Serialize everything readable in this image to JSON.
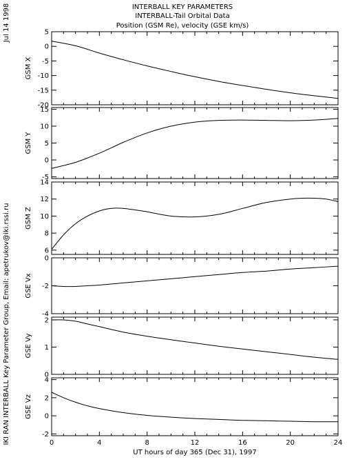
{
  "header": {
    "line1": "INTERBALL KEY PARAMETERS",
    "line2": "INTERBALL-Tail Orbital Data",
    "line3": "Position (GSM Re), velocity (GSE km/s)"
  },
  "side_date": "Jul 14 1998",
  "side_credit": "IKI RAN INTERBALL Key Parameter Group, Email: apetrukov@iki.rssi.ru",
  "xaxis": {
    "label": "UT hours of day 365 (Dec 31), 1997",
    "ticks": [
      0,
      4,
      8,
      12,
      16,
      20,
      24
    ],
    "range": [
      0,
      24
    ]
  },
  "chart_data": [
    {
      "type": "line",
      "ylabel": "GSM X",
      "xlim": [
        0,
        24
      ],
      "ylim": [
        -20,
        5
      ],
      "yticks": [
        5,
        0,
        -5,
        -10,
        -15,
        -20
      ],
      "x": [
        0,
        2,
        4,
        6,
        8,
        10,
        12,
        14,
        16,
        18,
        20,
        22,
        24
      ],
      "y": [
        1.8,
        0.2,
        -2.3,
        -4.6,
        -6.7,
        -8.6,
        -10.4,
        -12.0,
        -13.4,
        -14.7,
        -15.9,
        -16.9,
        -17.8
      ]
    },
    {
      "type": "line",
      "ylabel": "GSM Y",
      "xlim": [
        0,
        24
      ],
      "ylim": [
        -5.5,
        15.5
      ],
      "yticks": [
        15,
        10,
        5,
        0,
        -5
      ],
      "x": [
        0,
        2,
        4,
        6,
        8,
        10,
        12,
        14,
        16,
        18,
        20,
        22,
        24
      ],
      "y": [
        -2.5,
        -0.7,
        2.0,
        5.2,
        8.0,
        10.0,
        11.2,
        11.7,
        11.8,
        11.7,
        11.6,
        11.8,
        12.3
      ]
    },
    {
      "type": "line",
      "ylabel": "GSM Z",
      "xlim": [
        0,
        24
      ],
      "ylim": [
        5.5,
        14
      ],
      "yticks": [
        14,
        12,
        10,
        8,
        6
      ],
      "x": [
        0,
        1,
        2,
        3,
        4,
        5,
        6,
        8,
        10,
        12,
        14,
        16,
        18,
        20,
        21,
        22,
        23,
        24
      ],
      "y": [
        6.1,
        7.8,
        9.1,
        10.0,
        10.6,
        10.9,
        10.9,
        10.5,
        10.0,
        9.9,
        10.2,
        10.9,
        11.6,
        12.0,
        12.1,
        12.1,
        12.0,
        11.7
      ]
    },
    {
      "type": "line",
      "ylabel": "GSE Vx",
      "xlim": [
        0,
        24
      ],
      "ylim": [
        -4,
        0
      ],
      "yticks": [
        0,
        -2,
        -4
      ],
      "x": [
        0,
        1,
        2,
        3,
        4,
        6,
        8,
        10,
        12,
        14,
        16,
        18,
        20,
        22,
        24
      ],
      "y": [
        -2.0,
        -2.05,
        -2.05,
        -2.0,
        -1.95,
        -1.8,
        -1.65,
        -1.5,
        -1.35,
        -1.2,
        -1.05,
        -0.95,
        -0.8,
        -0.7,
        -0.6
      ]
    },
    {
      "type": "line",
      "ylabel": "GSE Vy",
      "xlim": [
        0,
        24
      ],
      "ylim": [
        0,
        2.1
      ],
      "yticks": [
        2,
        1,
        0
      ],
      "x": [
        0,
        1,
        2,
        3,
        4,
        6,
        8,
        10,
        12,
        14,
        16,
        18,
        20,
        22,
        24
      ],
      "y": [
        2.0,
        2.0,
        1.95,
        1.85,
        1.75,
        1.55,
        1.4,
        1.27,
        1.15,
        1.03,
        0.93,
        0.83,
        0.73,
        0.63,
        0.55
      ]
    },
    {
      "type": "line",
      "ylabel": "GSE Vz",
      "xlim": [
        0,
        24
      ],
      "ylim": [
        -2.2,
        4.2
      ],
      "yticks": [
        4,
        2,
        0,
        -2
      ],
      "x": [
        0,
        1,
        2,
        3,
        4,
        6,
        8,
        10,
        12,
        14,
        16,
        18,
        20,
        22,
        24
      ],
      "y": [
        2.6,
        2.0,
        1.5,
        1.1,
        0.8,
        0.35,
        0.05,
        -0.15,
        -0.3,
        -0.4,
        -0.5,
        -0.55,
        -0.6,
        -0.65,
        -0.65
      ]
    }
  ]
}
